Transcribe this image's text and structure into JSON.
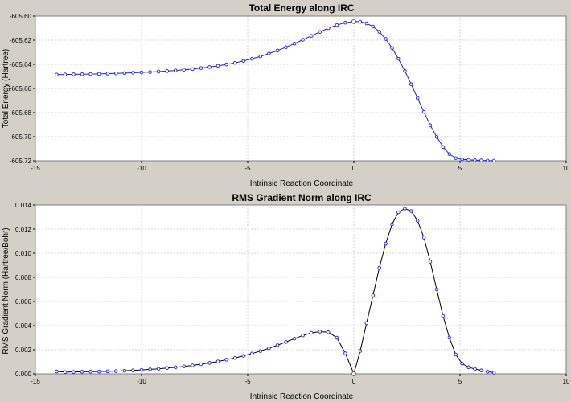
{
  "colors": {
    "background": "#d4d0c8",
    "plot_background": "#ffffff",
    "marker": "#1c1ce0",
    "highlight_marker": "#e02020",
    "line": "#000000"
  },
  "chart_data": [
    {
      "type": "line",
      "title": "Total Energy along IRC",
      "xlabel": "Intrinsic Reaction Coordinate",
      "ylabel": "Total Energy (Hartree)",
      "xlim": [
        -15,
        10
      ],
      "ylim": [
        -605.72,
        -605.6
      ],
      "xticks": [
        -15,
        -10,
        -5,
        0,
        5,
        10
      ],
      "xtick_labels": [
        "-15",
        "-10",
        "-5",
        "0",
        "5",
        "10"
      ],
      "yticks": [
        -605.72,
        -605.7,
        -605.68,
        -605.66,
        -605.64,
        -605.62,
        -605.6
      ],
      "ytick_labels": [
        "-605.72",
        "-605.70",
        "-605.68",
        "-605.66",
        "-605.64",
        "-605.62",
        "-605.60"
      ],
      "grid": true,
      "line_color": "#1f1fbf",
      "highlight_x": 0,
      "x": [
        -14.0,
        -13.6,
        -13.2,
        -12.8,
        -12.4,
        -12.0,
        -11.6,
        -11.2,
        -10.8,
        -10.4,
        -10.0,
        -9.6,
        -9.2,
        -8.8,
        -8.4,
        -8.0,
        -7.6,
        -7.2,
        -6.8,
        -6.4,
        -6.0,
        -5.6,
        -5.2,
        -4.8,
        -4.4,
        -4.0,
        -3.6,
        -3.2,
        -2.8,
        -2.4,
        -2.0,
        -1.6,
        -1.2,
        -0.8,
        -0.4,
        0.0,
        0.3,
        0.6,
        0.9,
        1.2,
        1.5,
        1.8,
        2.1,
        2.4,
        2.7,
        3.0,
        3.3,
        3.6,
        3.9,
        4.2,
        4.5,
        4.8,
        5.1,
        5.4,
        5.7,
        6.0,
        6.3,
        6.6
      ],
      "y": [
        -605.6485,
        -605.6484,
        -605.6483,
        -605.6482,
        -605.6481,
        -605.6479,
        -605.6477,
        -605.6475,
        -605.6473,
        -605.647,
        -605.6467,
        -605.6464,
        -605.646,
        -605.6456,
        -605.6451,
        -605.6445,
        -605.6439,
        -605.6431,
        -605.6423,
        -605.6413,
        -605.6401,
        -605.6388,
        -605.6372,
        -605.6354,
        -605.6334,
        -605.6311,
        -605.6286,
        -605.6259,
        -605.6229,
        -605.6197,
        -605.6164,
        -605.6131,
        -605.61,
        -605.6074,
        -605.6055,
        -605.6045,
        -605.6047,
        -605.606,
        -605.6087,
        -605.613,
        -605.619,
        -605.6265,
        -605.6355,
        -605.6455,
        -605.6565,
        -605.668,
        -605.6795,
        -605.6905,
        -605.7002,
        -605.7085,
        -605.7145,
        -605.7178,
        -605.7188,
        -605.7192,
        -605.7195,
        -605.7197,
        -605.7198,
        -605.7199
      ]
    },
    {
      "type": "line",
      "title": "RMS Gradient Norm along IRC",
      "xlabel": "Intrinsic Reaction Coordinate",
      "ylabel": "RMS Gradient Norm (Hartree/Bohr)",
      "xlim": [
        -15,
        10
      ],
      "ylim": [
        0,
        0.014
      ],
      "xticks": [
        -15,
        -10,
        -5,
        0,
        5,
        10
      ],
      "xtick_labels": [
        "-15",
        "-10",
        "-5",
        "0",
        "5",
        "10"
      ],
      "yticks": [
        0,
        0.002,
        0.004,
        0.006,
        0.008,
        0.01,
        0.012,
        0.014
      ],
      "ytick_labels": [
        "0.000",
        "0.002",
        "0.004",
        "0.006",
        "0.008",
        "0.010",
        "0.012",
        "0.014"
      ],
      "grid": true,
      "line_color": "#000000",
      "highlight_x": 0,
      "x": [
        -14.0,
        -13.6,
        -13.2,
        -12.8,
        -12.4,
        -12.0,
        -11.6,
        -11.2,
        -10.8,
        -10.4,
        -10.0,
        -9.6,
        -9.2,
        -8.8,
        -8.4,
        -8.0,
        -7.6,
        -7.2,
        -6.8,
        -6.4,
        -6.0,
        -5.6,
        -5.2,
        -4.8,
        -4.4,
        -4.0,
        -3.6,
        -3.2,
        -2.8,
        -2.4,
        -2.0,
        -1.6,
        -1.2,
        -0.8,
        -0.4,
        0.0,
        0.3,
        0.6,
        0.9,
        1.2,
        1.5,
        1.8,
        2.1,
        2.4,
        2.7,
        3.0,
        3.3,
        3.6,
        3.9,
        4.2,
        4.5,
        4.8,
        5.1,
        5.4,
        5.7,
        6.0,
        6.3,
        6.6
      ],
      "y": [
        0.0002,
        0.00015,
        0.00016,
        0.00017,
        0.00018,
        0.00019,
        0.00021,
        0.00023,
        0.00026,
        0.00029,
        0.00033,
        0.00037,
        0.00042,
        0.00048,
        0.00054,
        0.00062,
        0.0007,
        0.0008,
        0.00091,
        0.00103,
        0.00117,
        0.00132,
        0.00149,
        0.00168,
        0.00189,
        0.00212,
        0.00237,
        0.00264,
        0.00292,
        0.00318,
        0.0034,
        0.0035,
        0.00345,
        0.003,
        0.0017,
        0.0,
        0.0019,
        0.0042,
        0.0065,
        0.0088,
        0.0108,
        0.0124,
        0.0134,
        0.0137,
        0.0135,
        0.0127,
        0.0113,
        0.0093,
        0.007,
        0.0048,
        0.003,
        0.0016,
        0.00085,
        0.00055,
        0.0004,
        0.00028,
        0.00018,
        0.0001
      ]
    }
  ]
}
